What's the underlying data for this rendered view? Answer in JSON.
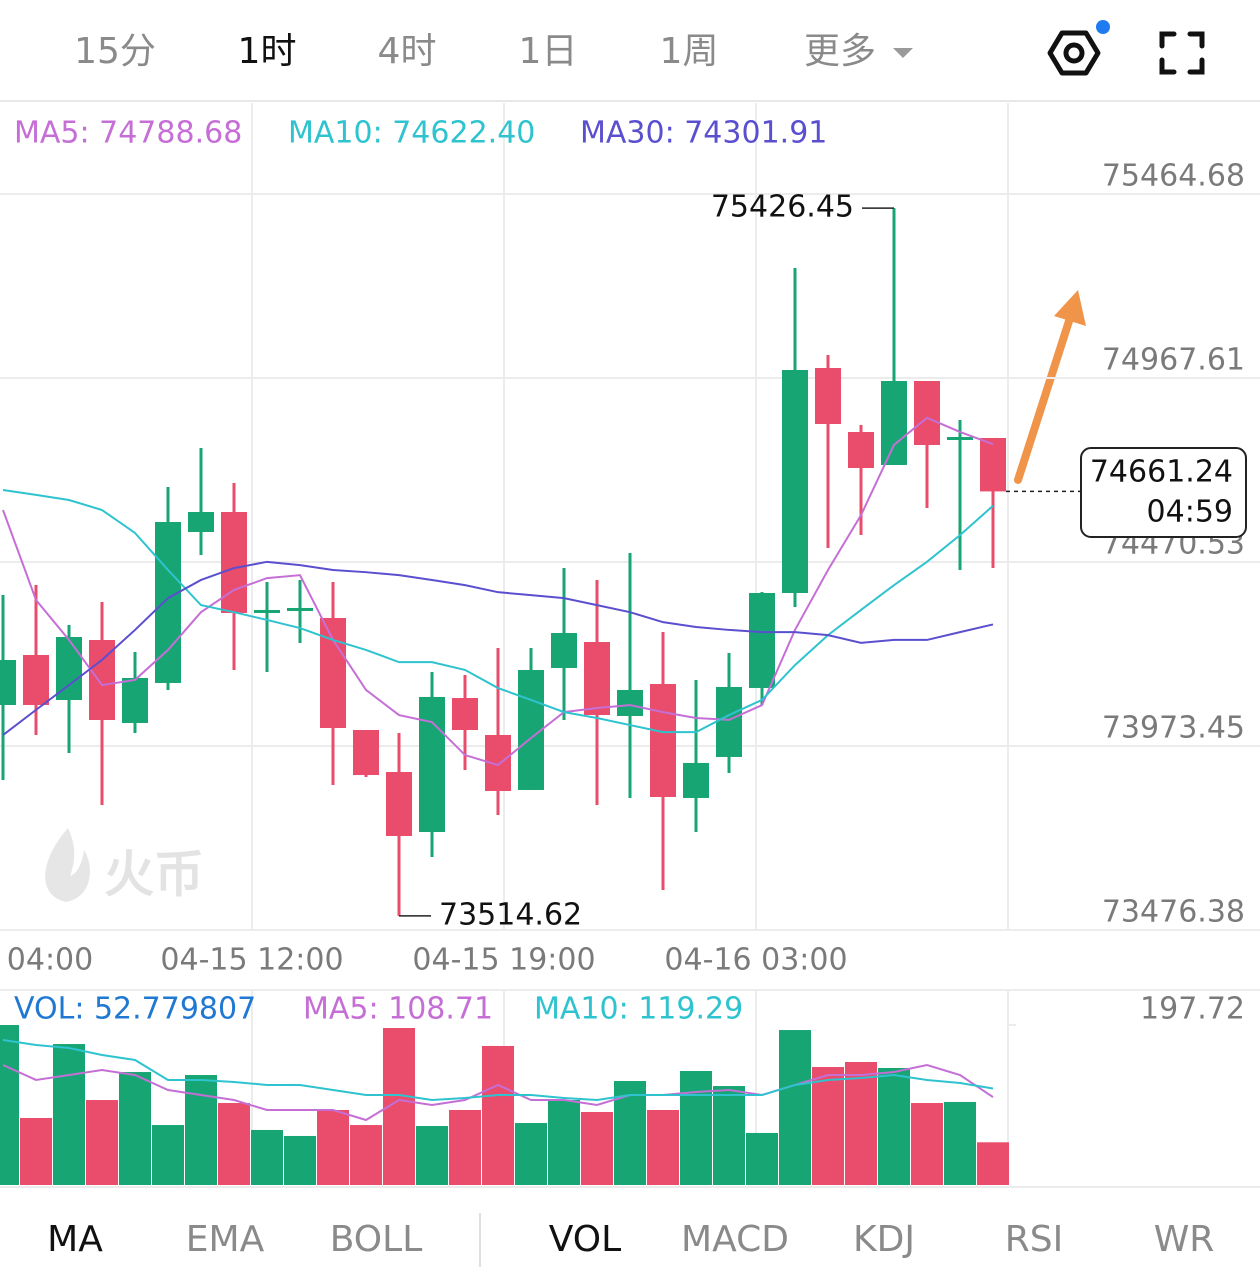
{
  "intervals": [
    "15分",
    "1时",
    "4时",
    "1日",
    "1周",
    "更多"
  ],
  "indicator_tabs": [
    "MA",
    "EMA",
    "BOLL",
    "VOL",
    "MACD",
    "KDJ",
    "RSI",
    "WR"
  ],
  "chart_data": [
    {
      "type": "candlestick",
      "ylim": [
        73476.38,
        75710.5
      ],
      "yticks": [
        73476.38,
        73973.45,
        74470.53,
        74967.61,
        75464.68
      ],
      "up_color": "#17a673",
      "down_color": "#ea4c6b",
      "open": [
        74084.2,
        74219.3,
        74097.7,
        74259.8,
        74035.6,
        74143.7,
        74551.6,
        74605.6,
        74335.5,
        74340.9,
        74319.3,
        74016.7,
        73903.2,
        73741.1,
        74103.1,
        74003.2,
        73854.6,
        74184.2,
        74254.4,
        74054.5,
        74141.0,
        73833.0,
        73943.8,
        74130.2,
        74386.8,
        74994.6,
        74821.7,
        74732.6,
        74959.5,
        74802.8,
        74805.5
      ],
      "high": [
        74381.4,
        74408.4,
        74300.4,
        74362.5,
        74227.4,
        74673.2,
        74778.5,
        74684.0,
        74416.5,
        74421.9,
        74416.5,
        74016.7,
        74008.6,
        74173.4,
        74165.3,
        74238.2,
        74238.2,
        74454.4,
        74421.9,
        74494.9,
        74281.4,
        74151.8,
        74224.7,
        74389.5,
        75264.8,
        75029.8,
        74840.7,
        75426.45,
        74959.5,
        74854.2,
        74805.5
      ],
      "low": [
        73881.6,
        74003.2,
        73954.6,
        73814.1,
        74008.6,
        74124.8,
        74489.5,
        74178.8,
        74173.4,
        74251.7,
        73868.1,
        73889.7,
        73514.62,
        73673.6,
        73908.6,
        73787.1,
        73854.6,
        74043.7,
        73814.1,
        73833.0,
        73584.5,
        73741.1,
        73900.5,
        74084.2,
        74349.0,
        74508.4,
        74543.5,
        74732.6,
        74616.4,
        74448.9,
        74454.4
      ],
      "close": [
        74205.8,
        74084.2,
        74267.9,
        74043.7,
        74157.2,
        74578.6,
        74605.6,
        74332.8,
        74340.9,
        74346.3,
        74022.1,
        73895.1,
        73730.3,
        74105.9,
        74016.7,
        73851.9,
        74178.8,
        74278.7,
        74057.2,
        74124.8,
        73835.7,
        73927.6,
        74132.9,
        74386.8,
        74989.2,
        74843.3,
        74724.5,
        74959.5,
        74786.6,
        74808.2,
        74661.24
      ],
      "series": [
        {
          "name": "MA5: 74788.68",
          "color": "#c56fd6",
          "values": [
            74611,
            74368,
            74260,
            74138,
            74152,
            74233,
            74335,
            74395,
            74427,
            74435,
            74260,
            74125,
            74057,
            74038,
            73949,
            73922,
            73995,
            74065,
            74076,
            74084,
            74065,
            74049,
            74044,
            74084,
            74287,
            74449,
            74597,
            74787,
            74860,
            74822,
            74788.68
          ]
        },
        {
          "name": "MA10: 74622.40",
          "color": "#2ec3cf",
          "values": [
            74665,
            74652,
            74638,
            74611,
            74549,
            74449,
            74354,
            74335,
            74314,
            74292,
            74260,
            74233,
            74200,
            74200,
            74179,
            74130,
            74098,
            74065,
            74049,
            74030,
            74011,
            74011,
            74057,
            74098,
            74192,
            74273,
            74341,
            74408,
            74471,
            74543,
            74622.4
          ]
        },
        {
          "name": "MA30: 74301.91",
          "color": "#5a4fcf",
          "values": [
            74003,
            74071,
            74138,
            74206,
            74287,
            74373,
            74422,
            74454,
            74471,
            74462,
            74449,
            74443,
            74435,
            74422,
            74408,
            74389,
            74381,
            74373,
            74354,
            74335,
            74308,
            74295,
            74287,
            74281,
            74281,
            74273,
            74252,
            74260,
            74260,
            74281,
            74301.91
          ]
        }
      ],
      "x_labels": [
        "04:00",
        "04-15 12:00",
        "04-15 19:00",
        "04-16 03:00"
      ],
      "high_label": 75426.45,
      "low_label": 73514.62,
      "last_price": 74661.24,
      "countdown": "04:59",
      "watermark": "火币"
    },
    {
      "type": "bar",
      "ylim": [
        0,
        197.72
      ],
      "yticks": [
        197.72
      ],
      "legend_label": "VOL: 52.779807",
      "legend_color": "#1f78d1",
      "values": [
        197.7,
        82.8,
        174.2,
        105.0,
        139.6,
        74.1,
        135.9,
        101.3,
        68.0,
        60.6,
        92.7,
        74.1,
        194.0,
        72.9,
        92.7,
        171.8,
        76.6,
        105.0,
        90.2,
        128.5,
        92.7,
        140.9,
        122.3,
        64.3,
        191.5,
        145.8,
        152.0,
        144.6,
        101.3,
        102.6,
        52.779807
      ],
      "series": [
        {
          "name": "MA5: 108.71",
          "color": "#c56fd6",
          "values": [
            148.3,
            129.8,
            135.9,
            142.1,
            135.9,
            117.4,
            111.2,
            105.0,
            92.7,
            92.7,
            92.7,
            80.3,
            105.0,
            98.9,
            105.0,
            123.6,
            105.0,
            105.0,
            98.9,
            111.2,
            111.2,
            114.9,
            117.4,
            111.2,
            123.6,
            135.9,
            135.9,
            139.6,
            148.3,
            135.9,
            108.71
          ]
        },
        {
          "name": "MA10: 119.29",
          "color": "#2ec3cf",
          "values": [
            179.2,
            173.0,
            169.3,
            160.6,
            154.5,
            129.8,
            129.8,
            127.3,
            123.6,
            123.6,
            117.4,
            111.2,
            111.2,
            105.0,
            107.5,
            111.2,
            111.2,
            107.5,
            105.0,
            111.2,
            111.2,
            111.2,
            111.2,
            111.2,
            123.6,
            129.8,
            132.2,
            135.9,
            129.8,
            126.0,
            119.29
          ]
        }
      ]
    }
  ]
}
